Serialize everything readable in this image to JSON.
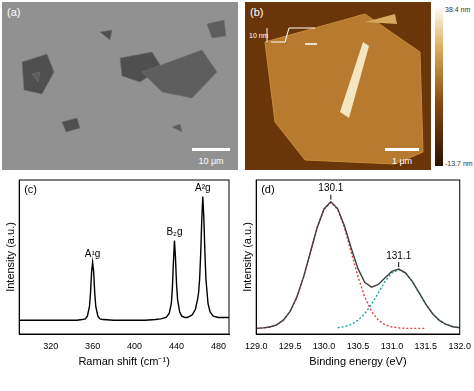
{
  "figure": {
    "panels": [
      {
        "label": "(a)",
        "scale_bar": "10 μm"
      },
      {
        "label": "(b)",
        "scale_bar": "1 μm",
        "inset_label": "10 nm",
        "colorbar_labels": [
          "38.4 nm",
          "-13.7 nm"
        ]
      }
    ]
  },
  "chart_data": [
    {
      "panel": "(c)",
      "type": "line",
      "x_label": "Raman shift (cm⁻¹)",
      "y_label": "Intensity (a.u.)",
      "xlim": [
        290,
        490
      ],
      "xticks": [
        320,
        360,
        400,
        440,
        480
      ],
      "ylim": [
        0,
        1.12
      ],
      "tick_labels": "x",
      "grid": false,
      "series": [
        {
          "color": "#000000",
          "line_style": "solid",
          "x": [
            290,
            300,
            310,
            320,
            330,
            340,
            345,
            350,
            353,
            355,
            357,
            358,
            359,
            360,
            361,
            362,
            363,
            365,
            367,
            370,
            380,
            390,
            400,
            410,
            420,
            425,
            430,
            433,
            435,
            436,
            437,
            438,
            439,
            440,
            441,
            443,
            445,
            448,
            450,
            453,
            455,
            458,
            460,
            461,
            462,
            463,
            464,
            465,
            466,
            467,
            468,
            470,
            472,
            475,
            480,
            490
          ],
          "values": [
            0.1,
            0.1,
            0.1,
            0.1,
            0.1,
            0.1,
            0.1,
            0.105,
            0.11,
            0.13,
            0.2,
            0.3,
            0.45,
            0.52,
            0.45,
            0.3,
            0.2,
            0.13,
            0.11,
            0.105,
            0.1,
            0.1,
            0.1,
            0.1,
            0.105,
            0.11,
            0.12,
            0.15,
            0.22,
            0.33,
            0.52,
            0.68,
            0.55,
            0.36,
            0.25,
            0.16,
            0.13,
            0.12,
            0.12,
            0.13,
            0.14,
            0.18,
            0.25,
            0.3,
            0.4,
            0.58,
            0.82,
            1.0,
            0.85,
            0.6,
            0.4,
            0.22,
            0.16,
            0.13,
            0.12,
            0.12
          ]
        }
      ],
      "annotations": [
        {
          "text": "A¹g",
          "x": 360,
          "y": 0.52
        },
        {
          "text": "B₂g",
          "x": 438,
          "y": 0.68
        },
        {
          "text": "A²g",
          "x": 465,
          "y": 1.0
        }
      ]
    },
    {
      "panel": "(d)",
      "type": "line",
      "x_label": "Binding energy (eV)",
      "y_label": "Intensity (a.u.)",
      "xlim": [
        129.0,
        132.0
      ],
      "xticks": [
        {
          "value": 129.0,
          "label": "129.0"
        },
        {
          "value": 129.5,
          "label": "129.5"
        },
        {
          "value": 130.0,
          "label": "130.0"
        },
        {
          "value": 130.5,
          "label": "130.5"
        },
        {
          "value": 131.0,
          "label": "131.0"
        },
        {
          "value": 131.5,
          "label": "131.5"
        },
        {
          "value": 132.0,
          "label": "132.0"
        }
      ],
      "ylim": [
        0,
        1.1
      ],
      "tick_labels": "x",
      "grid": false,
      "series": [
        {
          "color": "#404040",
          "line_style": "solid",
          "x": [
            129.0,
            129.1,
            129.2,
            129.3,
            129.4,
            129.5,
            129.6,
            129.7,
            129.8,
            129.9,
            130.0,
            130.1,
            130.2,
            130.3,
            130.4,
            130.5,
            130.6,
            130.7,
            130.8,
            130.9,
            131.0,
            131.1,
            131.2,
            131.3,
            131.4,
            131.5,
            131.6,
            131.7,
            131.8,
            131.9,
            132.0
          ],
          "values": [
            0.04,
            0.044,
            0.05,
            0.065,
            0.099,
            0.162,
            0.264,
            0.41,
            0.586,
            0.762,
            0.893,
            0.945,
            0.896,
            0.773,
            0.614,
            0.467,
            0.369,
            0.335,
            0.354,
            0.401,
            0.447,
            0.464,
            0.437,
            0.376,
            0.295,
            0.213,
            0.145,
            0.097,
            0.068,
            0.052,
            0.045
          ]
        },
        {
          "color": "#e04040",
          "line_style": "dotted",
          "x": [
            129.0,
            129.1,
            129.2,
            129.3,
            129.4,
            129.5,
            129.6,
            129.7,
            129.8,
            129.9,
            130.0,
            130.1,
            130.2,
            130.3,
            130.4,
            130.5,
            130.6,
            130.7,
            130.8,
            130.9,
            131.0,
            131.1,
            131.2,
            131.3,
            131.4,
            131.5
          ],
          "values": [
            0.04,
            0.044,
            0.05,
            0.065,
            0.099,
            0.162,
            0.264,
            0.41,
            0.586,
            0.761,
            0.891,
            0.94,
            0.891,
            0.761,
            0.586,
            0.41,
            0.264,
            0.162,
            0.099,
            0.065,
            0.05,
            0.044,
            0.04,
            0.04,
            0.04,
            0.04
          ]
        },
        {
          "color": "#20a0a0",
          "line_style": "dotted",
          "x": [
            130.2,
            130.3,
            130.4,
            130.5,
            130.6,
            130.7,
            130.8,
            130.9,
            131.0,
            131.1,
            131.2,
            131.3,
            131.4,
            131.5,
            131.6,
            131.7,
            131.8,
            131.9,
            132.0
          ],
          "values": [
            0.045,
            0.052,
            0.068,
            0.097,
            0.145,
            0.213,
            0.295,
            0.376,
            0.437,
            0.46,
            0.437,
            0.376,
            0.295,
            0.213,
            0.145,
            0.097,
            0.068,
            0.052,
            0.045
          ]
        }
      ],
      "annotations": [
        {
          "text": "130.1",
          "x": 130.1,
          "y": 0.945
        },
        {
          "text": "131.1",
          "x": 131.1,
          "y": 0.464
        }
      ]
    }
  ]
}
